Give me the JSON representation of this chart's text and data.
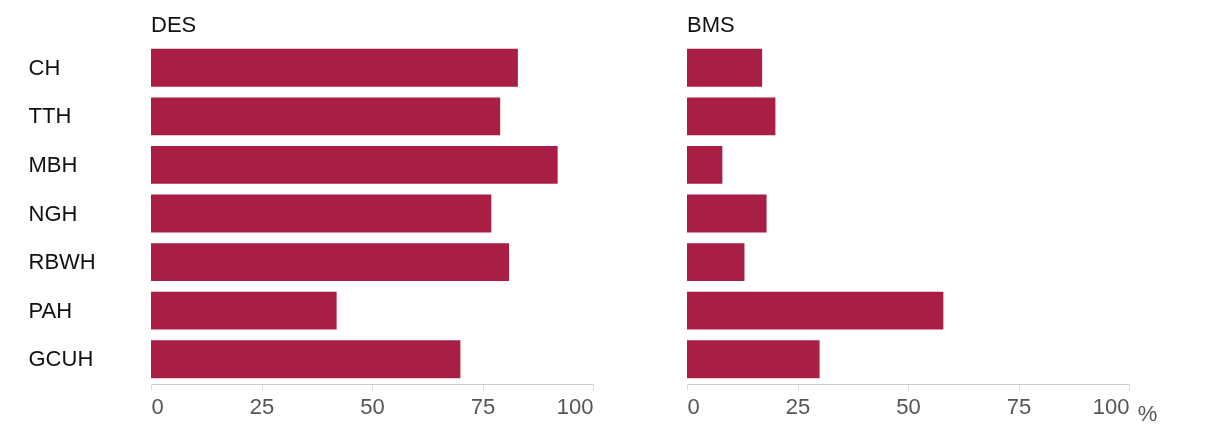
{
  "chart_data": [
    {
      "type": "bar",
      "orientation": "horizontal",
      "title": "DES",
      "categories": [
        "CH",
        "TTH",
        "MBH",
        "NGH",
        "RBWH",
        "PAH",
        "GCUH"
      ],
      "values": [
        83,
        79,
        92,
        77,
        81,
        42,
        70
      ],
      "color": "#a81e45",
      "xlim": [
        0,
        100
      ],
      "xticks": [
        0,
        25,
        50,
        75,
        100
      ]
    },
    {
      "type": "bar",
      "orientation": "horizontal",
      "title": "BMS",
      "xlabel": "%",
      "categories": [
        null,
        null,
        null,
        null,
        null,
        null,
        null
      ],
      "values": [
        17,
        20,
        8,
        18,
        13,
        58,
        30
      ],
      "color": "#a81e45",
      "xlim": [
        0,
        100
      ],
      "xticks": [
        0,
        25,
        50,
        75,
        100
      ]
    }
  ]
}
